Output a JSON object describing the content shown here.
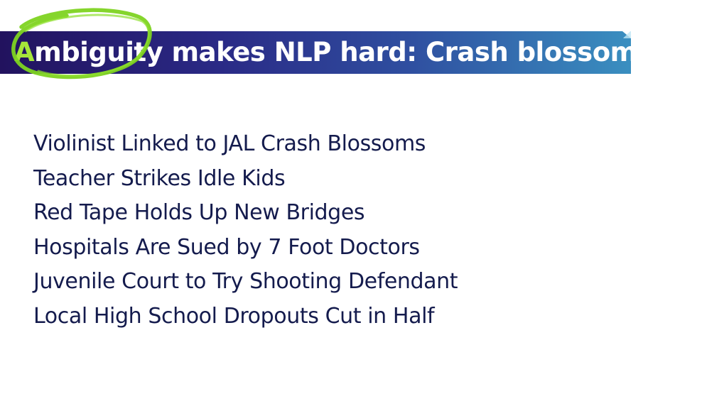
{
  "slide": {
    "title_first_letter": "A",
    "title_rest": "mbiguity makes NLP hard: Crash blossoms",
    "headlines": [
      "Violinist Linked to JAL Crash Blossoms",
      "Teacher Strikes Idle Kids",
      "Red Tape Holds Up New Bridges",
      "Hospitals Are Sued by 7 Foot Doctors",
      "Juvenile Court to Try Shooting Defendant",
      "Local High School Dropouts Cut in Half"
    ]
  },
  "colors": {
    "banner_start": "#22125e",
    "banner_end": "#3a8fc0",
    "annotation_green": "#7ed321",
    "headline_text": "#141b4d"
  },
  "icons": {
    "annotation": "hand-drawn-circle"
  }
}
